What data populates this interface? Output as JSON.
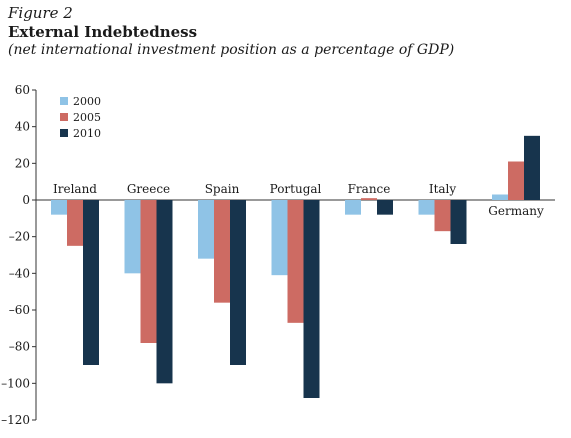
{
  "figure": {
    "label": "Figure 2",
    "title": "External Indebtedness",
    "subtitle": "(net international investment position as a percentage of GDP)"
  },
  "colors": {
    "2000": "#8fc3e6",
    "2005": "#cd6b63",
    "2010": "#17344d",
    "axis": "#333333"
  },
  "chart_data": {
    "type": "bar",
    "categories": [
      "Ireland",
      "Greece",
      "Spain",
      "Portugal",
      "France",
      "Italy",
      "Germany"
    ],
    "series": [
      {
        "name": "2000",
        "values": [
          -8,
          -40,
          -32,
          -41,
          -8,
          -8,
          3
        ]
      },
      {
        "name": "2005",
        "values": [
          -25,
          -78,
          -56,
          -67,
          1,
          -17,
          21
        ]
      },
      {
        "name": "2010",
        "values": [
          -90,
          -100,
          -90,
          -108,
          -8,
          -24,
          35
        ]
      }
    ],
    "title": "External Indebtedness",
    "subtitle": "(net international investment position as a percentage of GDP)",
    "xlabel": "",
    "ylabel": "",
    "ylim": [
      -120,
      60
    ],
    "yticks": [
      60,
      40,
      20,
      0,
      -20,
      -40,
      -60,
      -80,
      -100,
      -120
    ],
    "ytick_labels": [
      "60",
      "40",
      "20",
      "0",
      "–20",
      "–40",
      "–60",
      "–80",
      "–100",
      "–120"
    ],
    "legend": {
      "position": "top-left",
      "entries": [
        "2000",
        "2005",
        "2010"
      ]
    },
    "grid": false
  }
}
